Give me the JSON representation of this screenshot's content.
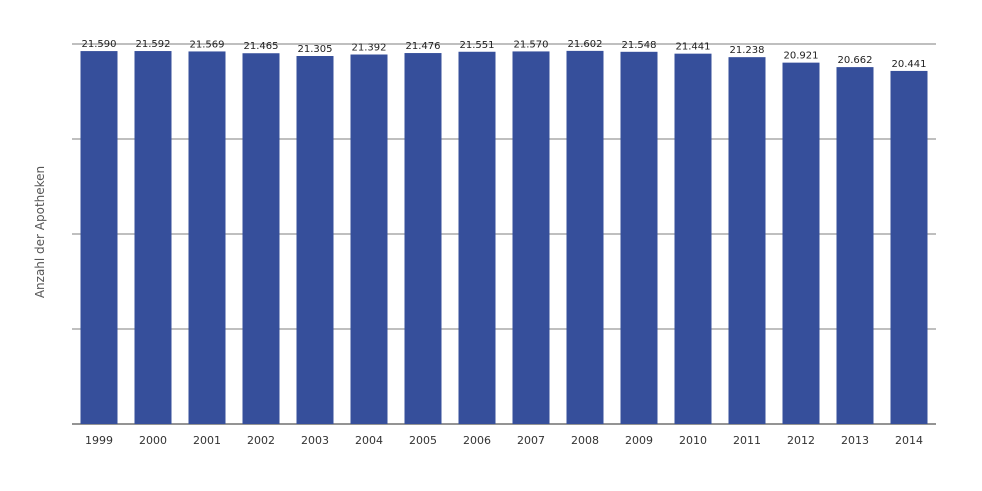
{
  "chart_data": {
    "type": "bar",
    "title": "",
    "xlabel": "",
    "ylabel": "Anzahl der Apotheken",
    "categories": [
      "1999",
      "2000",
      "2001",
      "2002",
      "2003",
      "2004",
      "2005",
      "2006",
      "2007",
      "2008",
      "2009",
      "2010",
      "2011",
      "2012",
      "2013",
      "2014"
    ],
    "values": [
      21590,
      21592,
      21569,
      21465,
      21305,
      21392,
      21476,
      21551,
      21570,
      21602,
      21548,
      21441,
      21238,
      20921,
      20662,
      20441
    ],
    "value_labels": [
      "21.590",
      "21.592",
      "21.569",
      "21.465",
      "21.305",
      "21.392",
      "21.476",
      "21.551",
      "21.570",
      "21.602",
      "21.548",
      "21.441",
      "21.238",
      "20.921",
      "20.662",
      "20.441"
    ],
    "ylim": [
      0,
      22000
    ],
    "grid": true,
    "legend": "none",
    "colors": {
      "bar": "#364f9b",
      "grid": "#555555",
      "axis": "#555555"
    }
  }
}
